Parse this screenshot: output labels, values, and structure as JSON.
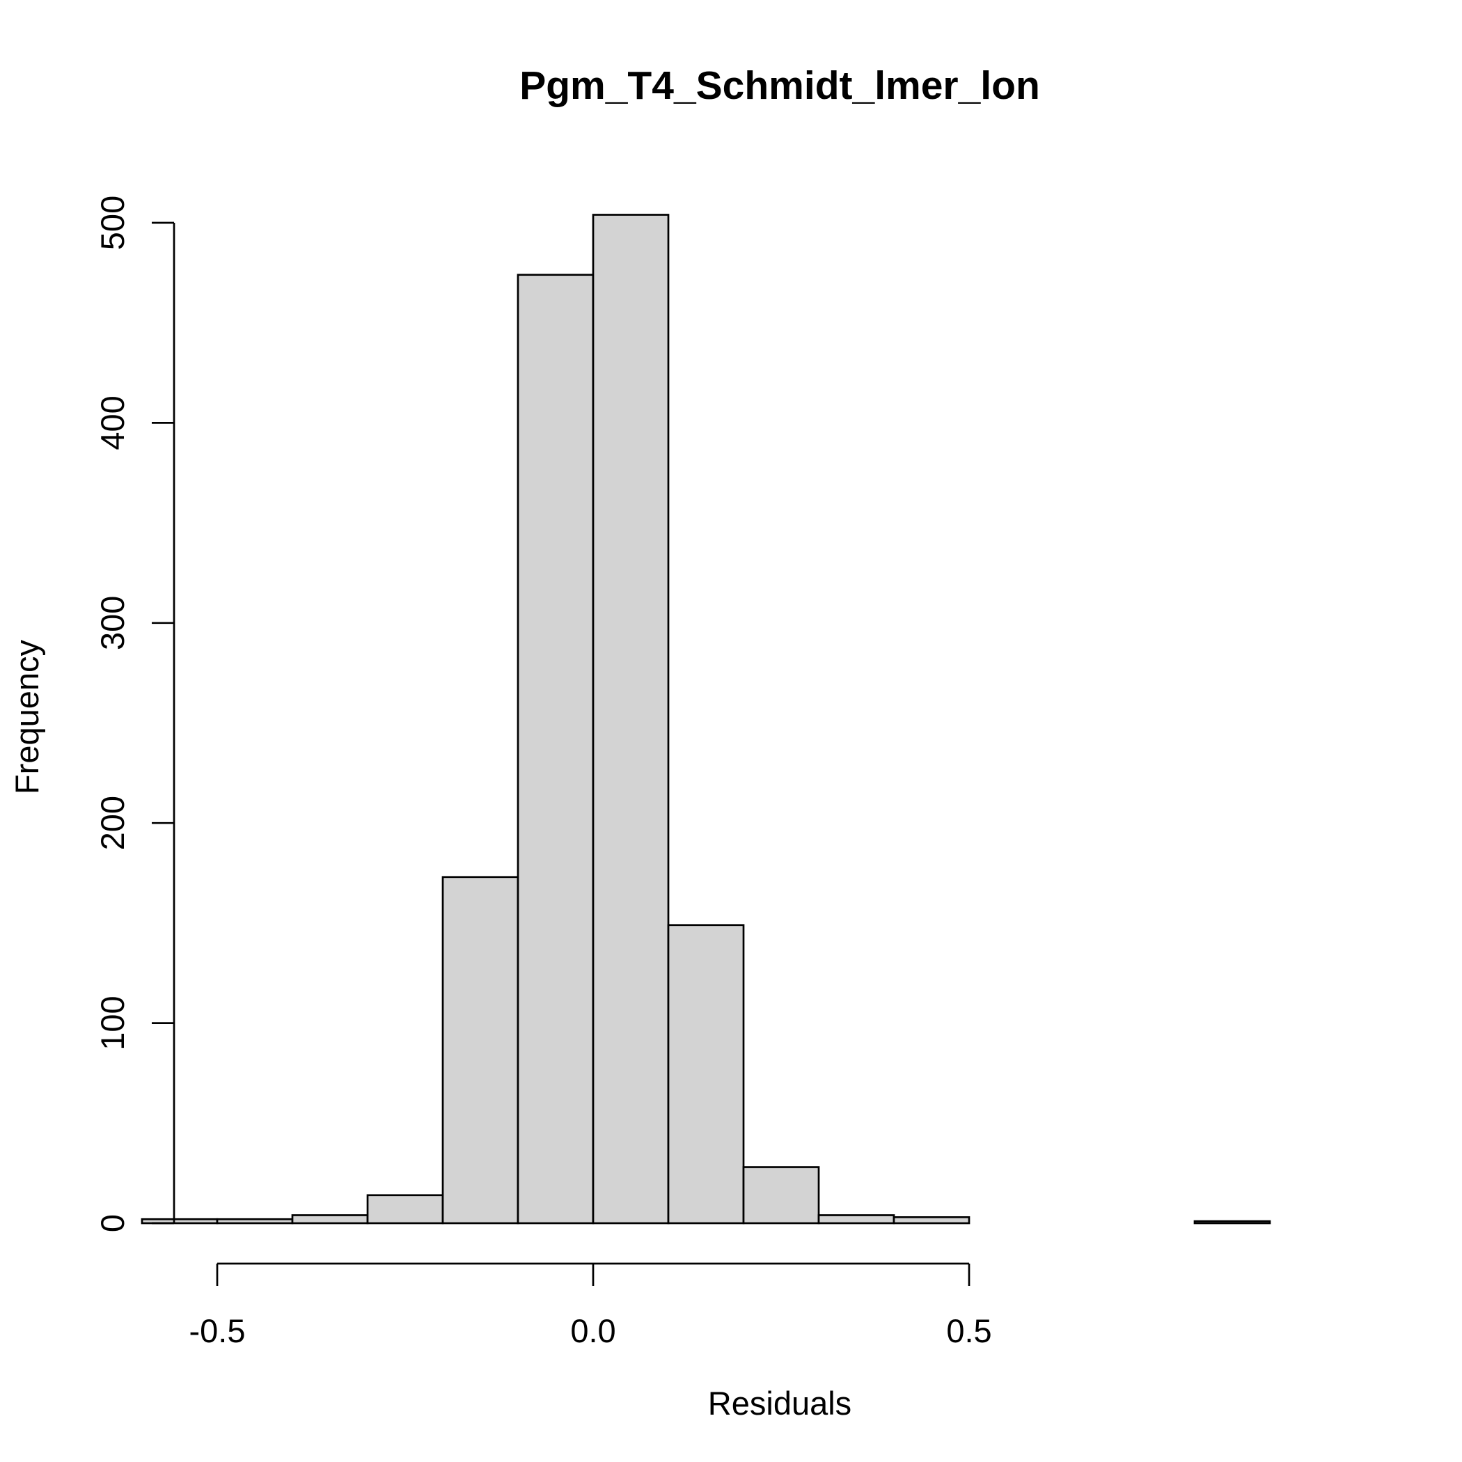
{
  "chart_data": {
    "type": "bar",
    "title": "Pgm_T4_Schmidt_lmer_lon",
    "xlabel": "Residuals",
    "ylabel": "Frequency",
    "xticks": [
      "-0.5",
      "0.0",
      "0.5"
    ],
    "yticks": [
      "0",
      "100",
      "200",
      "300",
      "400",
      "500"
    ],
    "xtick_values": [
      -0.5,
      0.0,
      0.5
    ],
    "ytick_values": [
      0,
      100,
      200,
      300,
      400,
      500
    ],
    "xlim": [
      -0.6,
      0.9
    ],
    "ylim": [
      0,
      500
    ],
    "bins": [
      {
        "start": -0.6,
        "end": -0.5,
        "count": 2
      },
      {
        "start": -0.5,
        "end": -0.4,
        "count": 2
      },
      {
        "start": -0.4,
        "end": -0.3,
        "count": 4
      },
      {
        "start": -0.3,
        "end": -0.2,
        "count": 14
      },
      {
        "start": -0.2,
        "end": -0.1,
        "count": 173
      },
      {
        "start": -0.1,
        "end": 0.0,
        "count": 474
      },
      {
        "start": 0.0,
        "end": 0.1,
        "count": 504
      },
      {
        "start": 0.1,
        "end": 0.2,
        "count": 149
      },
      {
        "start": 0.2,
        "end": 0.3,
        "count": 28
      },
      {
        "start": 0.3,
        "end": 0.4,
        "count": 4
      },
      {
        "start": 0.4,
        "end": 0.5,
        "count": 3
      },
      {
        "start": 0.5,
        "end": 0.6,
        "count": 0
      },
      {
        "start": 0.6,
        "end": 0.7,
        "count": 0
      },
      {
        "start": 0.7,
        "end": 0.8,
        "count": 0
      },
      {
        "start": 0.8,
        "end": 0.9,
        "count": 1
      }
    ],
    "bar_color": "#d3d3d3",
    "grid": false,
    "legend": "none"
  }
}
